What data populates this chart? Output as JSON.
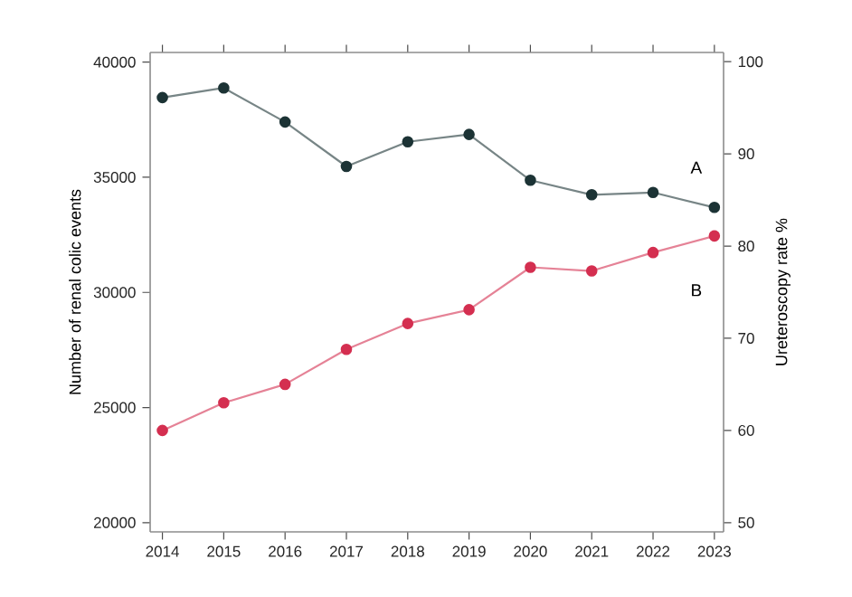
{
  "chart_data": {
    "type": "line",
    "x": [
      2014,
      2015,
      2016,
      2017,
      2018,
      2019,
      2020,
      2021,
      2022,
      2023
    ],
    "series": [
      {
        "color": "#1c3335",
        "values": [
          38460,
          38880,
          37400,
          35470,
          36540,
          36860,
          34870,
          34240,
          34340,
          33690
        ]
      },
      {
        "color": "#d42f50",
        "axis": "y2",
        "values": [
          60.0,
          63.0,
          65.0,
          68.8,
          71.6,
          73.1,
          77.7,
          77.3,
          79.3,
          81.1
        ]
      }
    ],
    "ylabel": "Number of renal colic events",
    "y2label": "Ureteroscopy rate %",
    "xlim": [
      2013.8,
      2023.15
    ],
    "xticks": [
      2014,
      2015,
      2016,
      2017,
      2018,
      2019,
      2020,
      2021,
      2022,
      2023
    ],
    "ylim": [
      19600,
      40420
    ],
    "yticks": [
      20000,
      25000,
      30000,
      35000,
      40000
    ],
    "y2lim": [
      49,
      101
    ],
    "y2ticks": [
      50,
      60,
      70,
      80,
      90,
      100
    ],
    "annotations": [
      "A",
      "B"
    ],
    "marker": "circle",
    "line_style": "solid",
    "grid": false
  }
}
